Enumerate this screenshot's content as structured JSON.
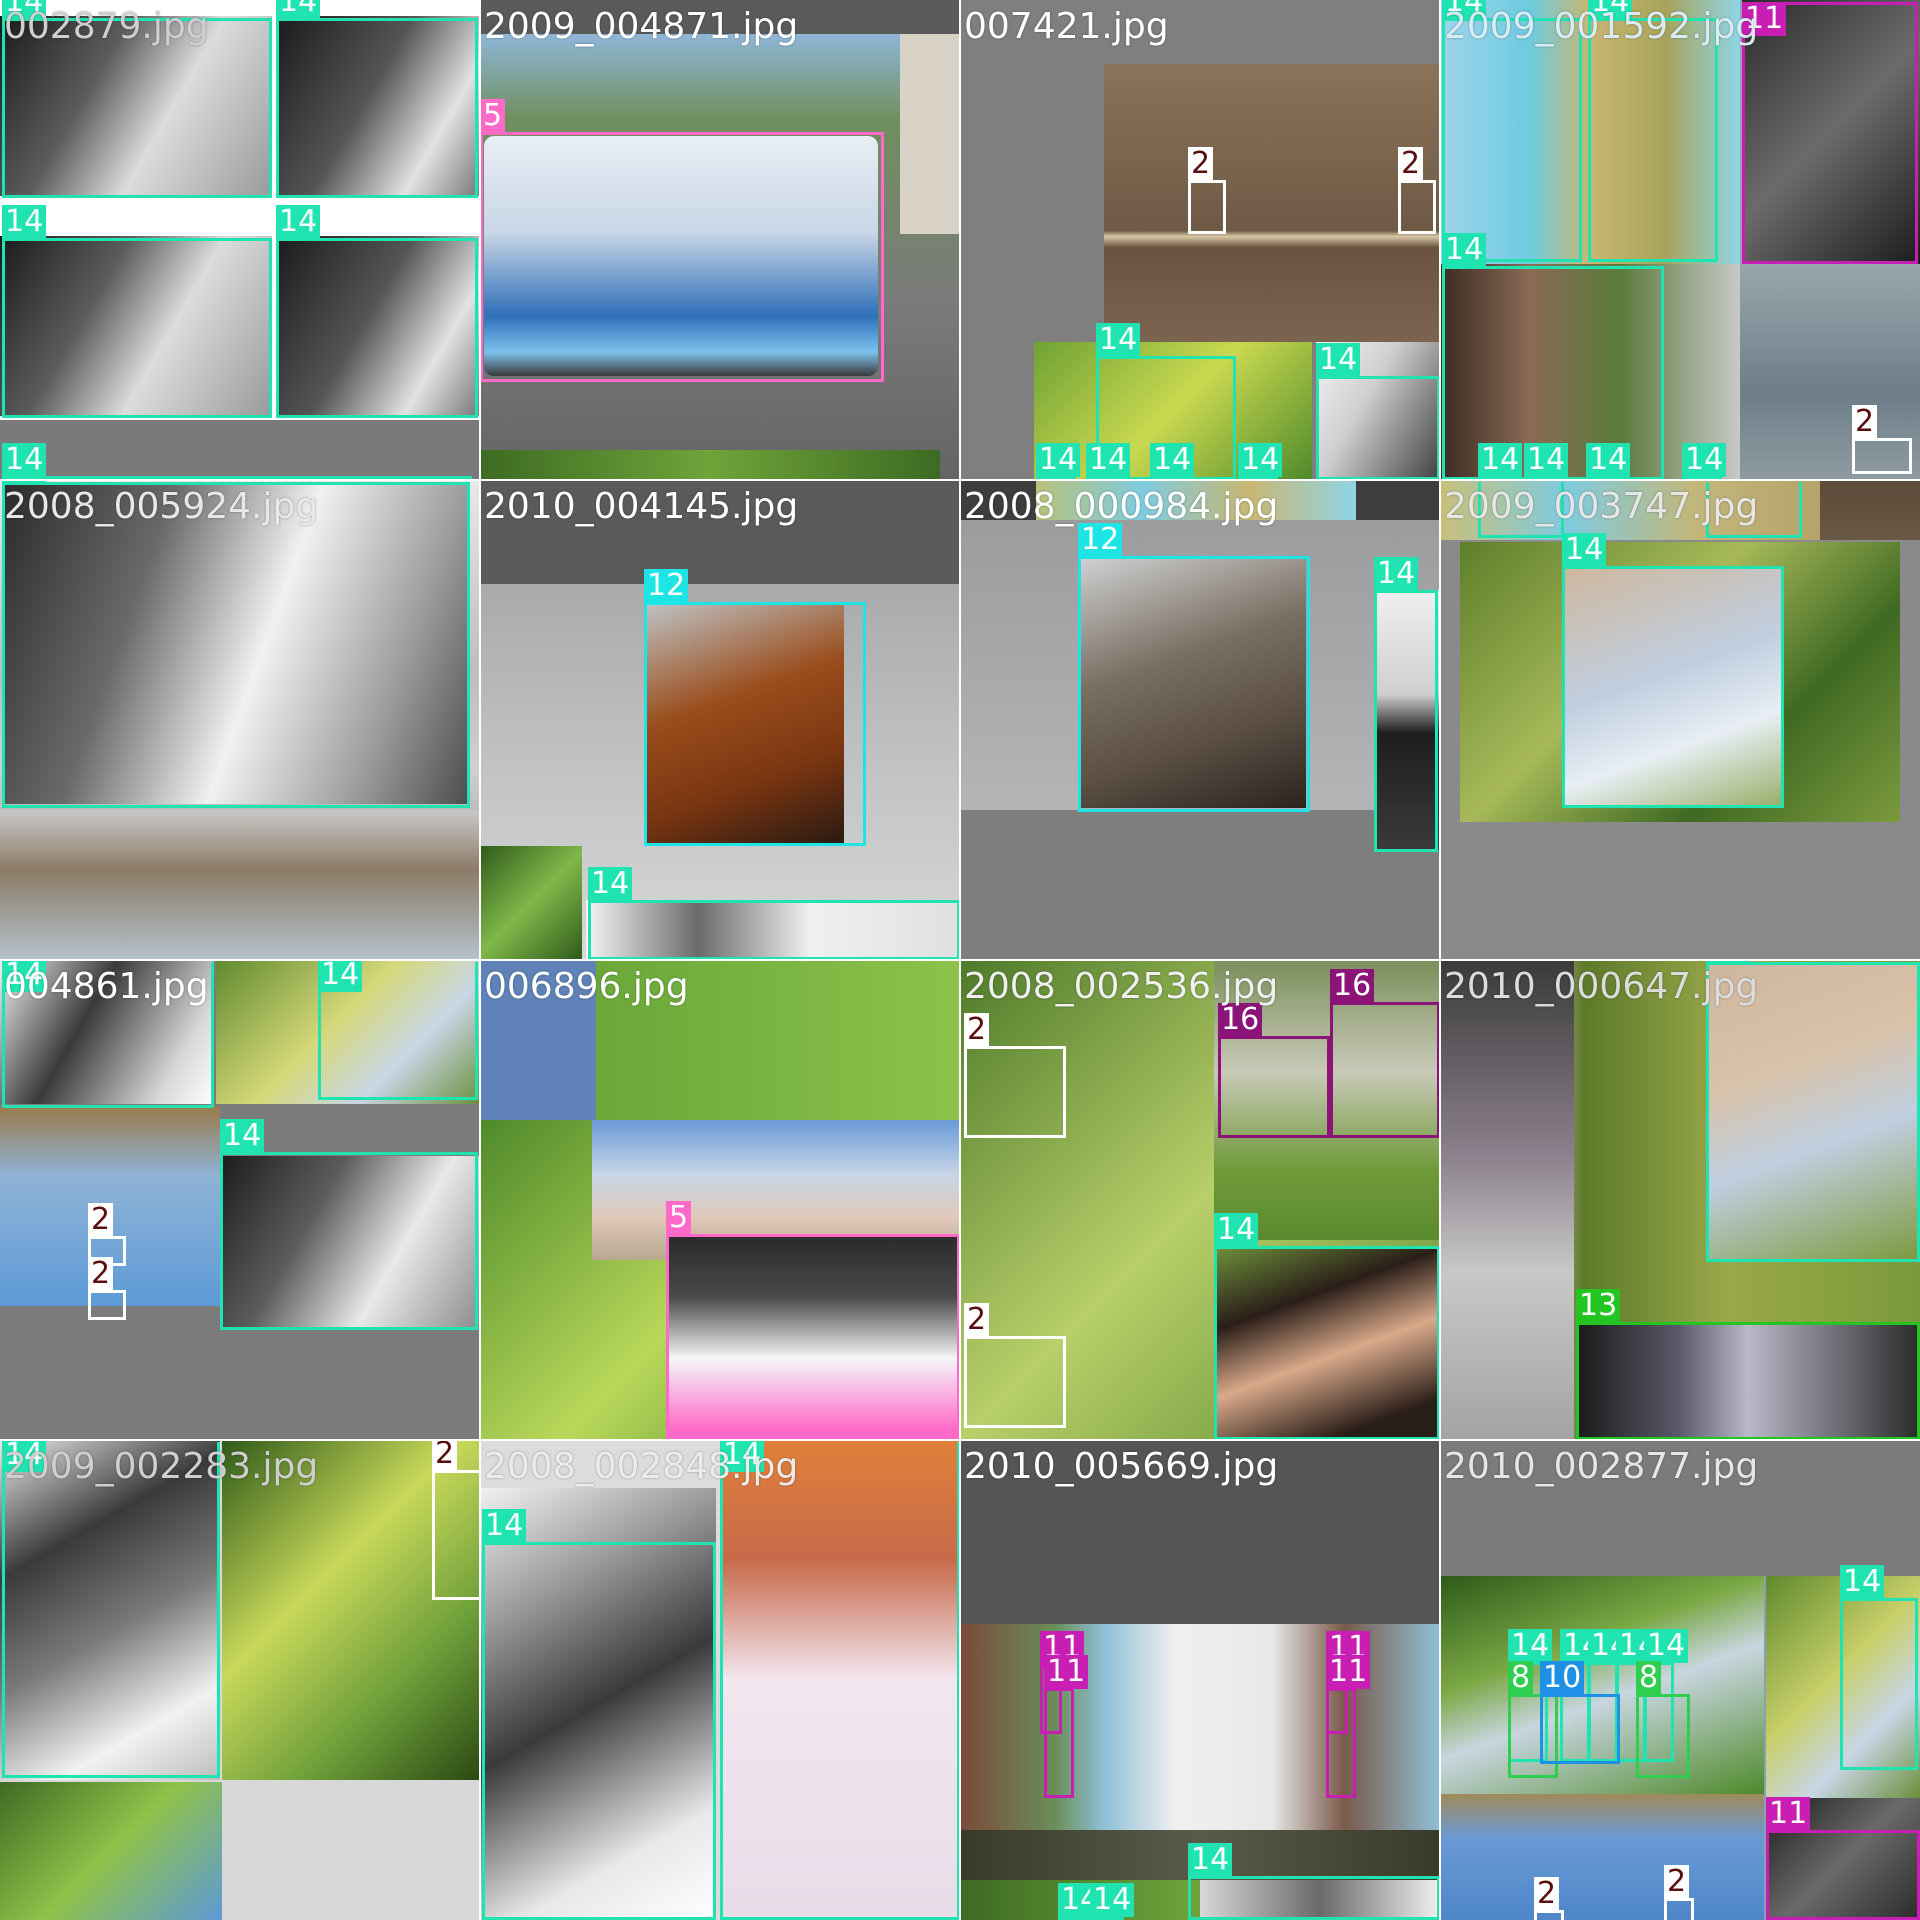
{
  "mosaic": {
    "colors": {
      "person": "#20e3b2",
      "bus": "#ff69c8",
      "bird": "#ffffff",
      "horse": "#1ee5e5",
      "dog": "#c81eb4",
      "sheep": "#8c1478",
      "motorbike": "#22c522",
      "chair": "#2ecf4e",
      "diningtable": "#1e90e6"
    },
    "tiles": [
      {
        "title": "002879.jpg",
        "labels": [
          "14",
          "14",
          "14",
          "14",
          "14"
        ]
      },
      {
        "title": "2009_004871.jpg",
        "labels": [
          "5"
        ]
      },
      {
        "title": "007421.jpg",
        "labels": [
          "2",
          "2",
          "14",
          "14",
          "14",
          "14",
          "14",
          "14"
        ]
      },
      {
        "title": "2009_001592.jpg",
        "labels": [
          "14",
          "14",
          "11",
          "14",
          "2",
          "14",
          "14",
          "14",
          "14"
        ]
      },
      {
        "title": "2008_005924.jpg",
        "labels": []
      },
      {
        "title": "2010_004145.jpg",
        "labels": [
          "12",
          "14"
        ]
      },
      {
        "title": "2008_000984.jpg",
        "labels": [
          "12",
          "14"
        ]
      },
      {
        "title": "2009_003747.jpg",
        "labels": [
          "14"
        ]
      },
      {
        "title": "004861.jpg",
        "labels": [
          "14",
          "14",
          "14",
          "2",
          "2"
        ]
      },
      {
        "title": "006896.jpg",
        "labels": [
          "5"
        ]
      },
      {
        "title": "2008_002536.jpg",
        "labels": [
          "2",
          "16",
          "16",
          "2",
          "14"
        ]
      },
      {
        "title": "2010_000647.jpg",
        "labels": [
          "14",
          "13"
        ]
      },
      {
        "title": "2009_002283.jpg",
        "labels": [
          "14",
          "2"
        ]
      },
      {
        "title": "2008_002848.jpg",
        "labels": [
          "14",
          "14"
        ]
      },
      {
        "title": "2010_005669.jpg",
        "labels": [
          "11",
          "11",
          "11",
          "11",
          "14",
          "14",
          "14"
        ]
      },
      {
        "title": "2010_002877.jpg",
        "labels": [
          "14",
          "14",
          "14",
          "14",
          "14",
          "8",
          "10",
          "8",
          "14",
          "11",
          "2",
          "2"
        ]
      }
    ]
  }
}
